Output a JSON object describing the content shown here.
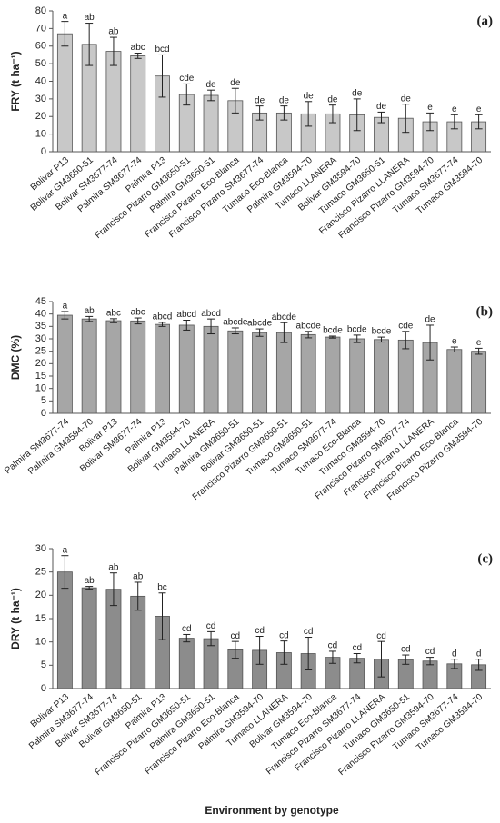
{
  "chart_data": [
    {
      "type": "bar",
      "panel_label": "(a)",
      "y_label": "FRY (t ha⁻¹)",
      "categories": [
        "Bolivar P13",
        "Bolivar GM3650-51",
        "Bolivar SM3677-74",
        "Palmira SM3677-74",
        "Palmira P13",
        "Francisco Pizarro GM3650-51",
        "Palmira GM3650-51",
        "Francisco Pizarro Eco-Blanca",
        "Francisco Pizarro SM3677-74",
        "Tumaco Eco-Blanca",
        "Palmira GM3594-70",
        "Tumaco LLANERA",
        "Bolivar GM3594-70",
        "Tumaco GM3650-51",
        "Francisco Pizarro LLANERA",
        "Francisco Pizarro GM3594-70",
        "Tumaco SM3677-74",
        "Tumaco GM3594-70"
      ],
      "values": [
        67,
        61,
        57,
        54.5,
        43,
        32.5,
        32,
        29,
        22,
        22,
        21.5,
        21.5,
        21,
        19.5,
        19,
        17,
        17,
        17
      ],
      "errors": [
        7,
        12,
        8,
        1.5,
        12,
        6,
        3,
        7,
        4,
        4,
        7,
        5,
        9,
        3,
        8,
        5,
        4,
        4
      ],
      "letters": [
        "a",
        "ab",
        "ab",
        "abc",
        "bcd",
        "cde",
        "de",
        "de",
        "de",
        "de",
        "de",
        "de",
        "de",
        "de",
        "de",
        "e",
        "e",
        "e"
      ],
      "color": "#c8c8c8",
      "ylim": [
        0,
        80
      ],
      "yticks": [
        0,
        10,
        20,
        30,
        40,
        50,
        60,
        70,
        80
      ]
    },
    {
      "type": "bar",
      "panel_label": "(b)",
      "y_label": "DMC (%)",
      "categories": [
        "Palmira SM3677-74",
        "Palmira GM3594-70",
        "Bolivar P13",
        "Bolivar SM3677-74",
        "Palmira P13",
        "Bolivar GM3594-70",
        "Tumaco LLANERA",
        "Palmira GM3650-51",
        "Bolivar GM3650-51",
        "Francisco Pizarro GM3650-51",
        "Tumaco GM3650-51",
        "Tumaco SM3677-74",
        "Tumaco Eco-Blanca",
        "Tumaco GM3594-70",
        "Francisco Pizarro SM3677-74",
        "Francisco Pizarro LLANERA",
        "Francisco Pizarro Eco-Blanca",
        "Francisco Pizarro GM3594-70"
      ],
      "values": [
        39.5,
        38,
        37.3,
        37.2,
        35.8,
        35.5,
        35,
        33.2,
        32.5,
        32.5,
        31.7,
        30.7,
        30,
        29.7,
        29.5,
        28.5,
        25.7,
        25
      ],
      "errors": [
        1.5,
        1,
        0.8,
        1.2,
        0.8,
        2,
        3,
        1.2,
        1.5,
        4,
        1.3,
        0.4,
        1.5,
        1,
        3.5,
        7,
        1,
        1.2
      ],
      "letters": [
        "a",
        "ab",
        "abc",
        "abc",
        "abcd",
        "abcd",
        "abcd",
        "abcde",
        "abcde",
        "abcde",
        "abcde",
        "bcde",
        "bcde",
        "bcde",
        "cde",
        "de",
        "e",
        "e"
      ],
      "color": "#a6a6a6",
      "ylim": [
        0,
        45
      ],
      "yticks": [
        0,
        5,
        10,
        15,
        20,
        25,
        30,
        35,
        40,
        45
      ]
    },
    {
      "type": "bar",
      "panel_label": "(c)",
      "y_label": "DRY (t ha⁻¹)",
      "x_label": "Environment by genotype",
      "categories": [
        "Bolivar P13",
        "Palmira SM3677-74",
        "Bolivar SM3677-74",
        "Bolivar GM3650-51",
        "Palmira P13",
        "Francisco Pizarro GM3650-51",
        "Palmira GM3650-51",
        "Francisco Pizarro Eco-Blanca",
        "Palmira GM3594-70",
        "Tumaco LLANERA",
        "Bolivar GM3594-70",
        "Tumaco Eco-Blanca",
        "Francisco Pizarro SM3677-74",
        "Francisco Pizarro LLANERA",
        "Tumaco GM3650-51",
        "Francisco Pizarro GM3594-70",
        "Tumaco SM3677-74",
        "Tumaco GM3594-70"
      ],
      "values": [
        25,
        21.6,
        21.3,
        19.8,
        15.5,
        10.8,
        10.7,
        8.3,
        8.2,
        7.7,
        7.5,
        6.7,
        6.5,
        6.3,
        6.2,
        5.9,
        5.3,
        5.1
      ],
      "errors": [
        3.5,
        0.3,
        3.5,
        3,
        5,
        0.8,
        1.5,
        1.8,
        3,
        2.5,
        3.5,
        1.3,
        1,
        3.8,
        1,
        0.8,
        1,
        1.2
      ],
      "letters": [
        "a",
        "ab",
        "ab",
        "ab",
        "bc",
        "cd",
        "cd",
        "cd",
        "cd",
        "cd",
        "cd",
        "cd",
        "cd",
        "cd",
        "cd",
        "cd",
        "d",
        "d"
      ],
      "color": "#8c8c8c",
      "ylim": [
        0,
        30
      ],
      "yticks": [
        0,
        5,
        10,
        15,
        20,
        25,
        30
      ]
    }
  ]
}
